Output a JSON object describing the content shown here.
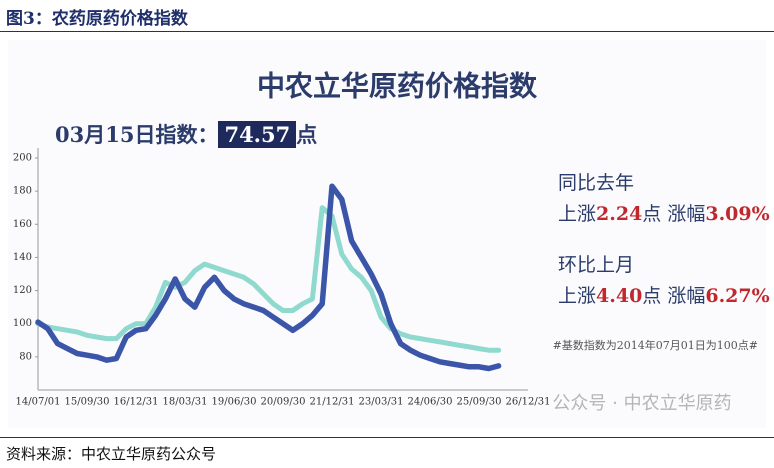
{
  "header": "图3：农药原药价格指数",
  "source": "资料来源：中农立华原药公众号",
  "watermark": "公众号 · 中农立华原药",
  "chart_data": {
    "type": "line",
    "title": "中农立华原药价格指数",
    "current": {
      "label": "03月15日指数：",
      "value": 74.57,
      "unit": "点"
    },
    "notes": [
      {
        "heading": "同比去年",
        "parts": [
          "上涨",
          "2.24",
          "点 涨幅",
          "3.09%"
        ]
      },
      {
        "heading": "环比上月",
        "parts": [
          "上涨",
          "4.40",
          "点 涨幅",
          "6.27%"
        ]
      }
    ],
    "footnote": "#基数指数为2014年07月01日为100点#",
    "categories": [
      "14/07/01",
      null,
      null,
      null,
      null,
      "15/09/30",
      null,
      null,
      null,
      null,
      "16/12/31",
      null,
      null,
      null,
      null,
      "18/03/31",
      null,
      null,
      null,
      null,
      "19/06/30",
      null,
      null,
      null,
      null,
      "20/09/30",
      null,
      null,
      null,
      null,
      "21/12/31",
      null,
      null,
      null,
      null,
      "23/03/31",
      null,
      null,
      null,
      null,
      "24/06/30",
      null,
      null,
      null,
      null,
      "25/09/30",
      null,
      null,
      null,
      null,
      "26/12/31"
    ],
    "series": [
      {
        "color": "#8fd9cf",
        "values": [
          100,
          98,
          97,
          96,
          95,
          93,
          92,
          91,
          91,
          97,
          100,
          100,
          110,
          125,
          122,
          125,
          132,
          136,
          134,
          132,
          130,
          128,
          124,
          118,
          112,
          108,
          108,
          112,
          115,
          170,
          165,
          142,
          133,
          128,
          120,
          104,
          97,
          94,
          92,
          91,
          90,
          89,
          88,
          87,
          86,
          85,
          84,
          84,
          null,
          null,
          null
        ]
      },
      {
        "color": "#3b55a8",
        "values": [
          101,
          97,
          88,
          85,
          82,
          81,
          80,
          78,
          79,
          92,
          96,
          97,
          105,
          115,
          127,
          115,
          110,
          122,
          128,
          120,
          115,
          112,
          110,
          108,
          104,
          100,
          96,
          100,
          105,
          112,
          183,
          175,
          150,
          140,
          130,
          118,
          100,
          88,
          84,
          81,
          79,
          77,
          76,
          75,
          74,
          74,
          73,
          74.57,
          null,
          null,
          null
        ]
      }
    ],
    "ylim": [
      60,
      200
    ],
    "yticks": [
      80,
      100,
      120,
      140,
      160,
      180,
      200
    ]
  }
}
